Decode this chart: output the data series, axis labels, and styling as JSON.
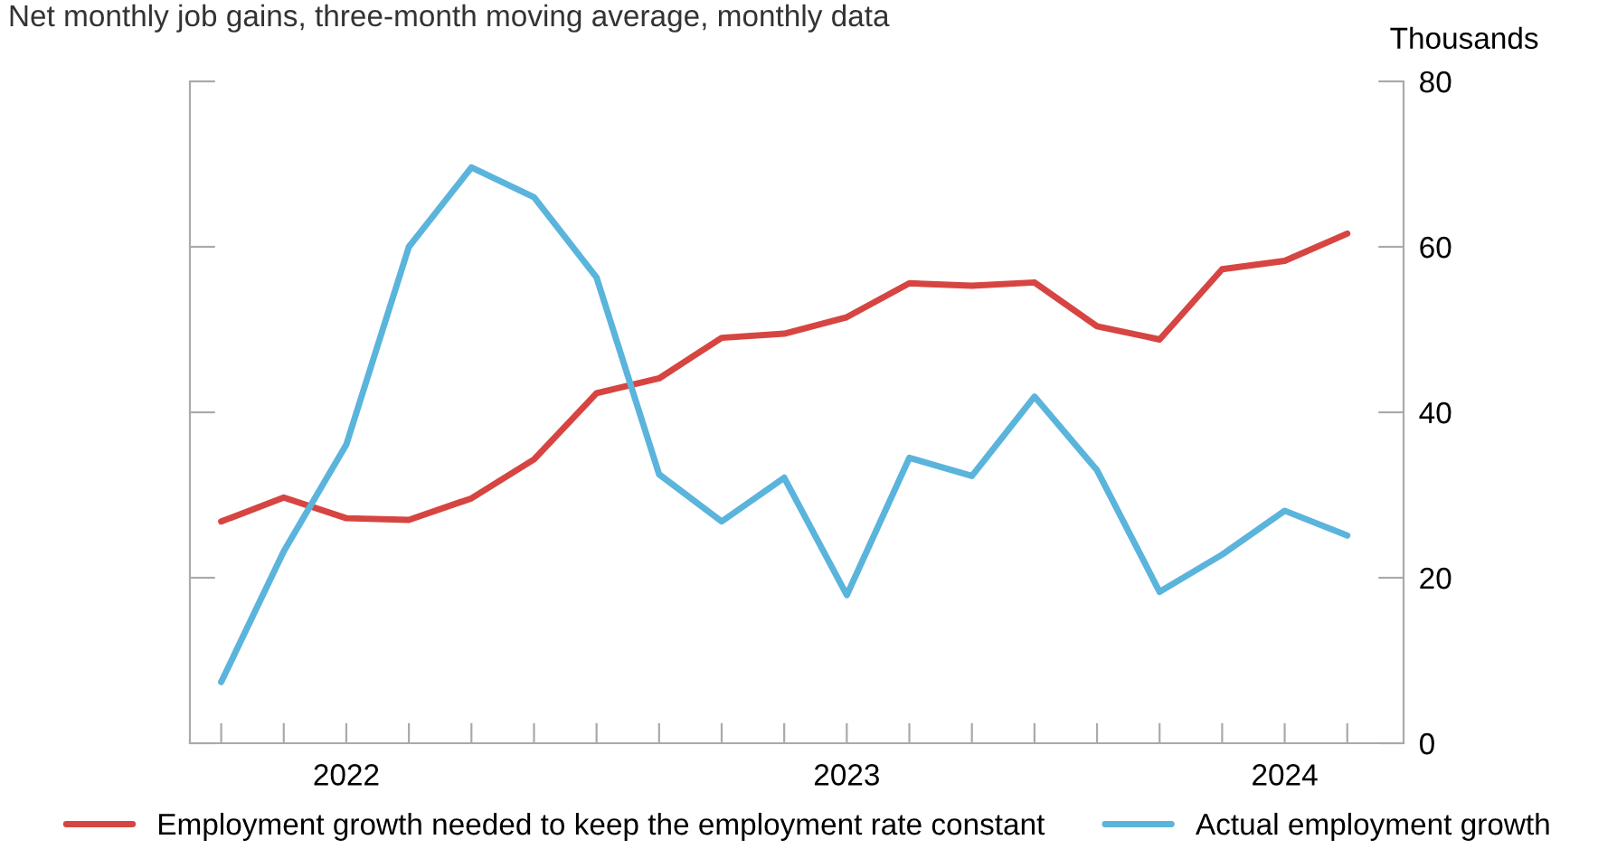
{
  "chart_data": {
    "type": "line",
    "subtitle": "Net monthly job gains, three-month moving average, monthly data",
    "ylabel": "Thousands",
    "categories": [
      null,
      null,
      "2022",
      null,
      null,
      null,
      null,
      null,
      null,
      null,
      "2023",
      null,
      null,
      null,
      null,
      null,
      null,
      "2024",
      null
    ],
    "series": [
      {
        "name": "Employment growth needed to keep the employment rate constant",
        "color": "#d64541",
        "values": [
          26.8,
          29.7,
          27.2,
          27.0,
          29.6,
          34.3,
          42.3,
          44.1,
          49.0,
          49.5,
          51.5,
          55.6,
          55.3,
          55.7,
          50.4,
          48.8,
          57.3,
          58.3,
          61.6
        ]
      },
      {
        "name": "Actual employment growth",
        "color": "#5ab4dc",
        "values": [
          7.4,
          23.2,
          36.1,
          60.0,
          69.6,
          66.0,
          56.3,
          32.5,
          26.8,
          32.1,
          17.9,
          34.5,
          32.3,
          41.9,
          33.0,
          18.3,
          22.8,
          28.1,
          25.1
        ]
      }
    ],
    "ylim": [
      0,
      80
    ],
    "yticks": [
      0,
      20,
      40,
      60,
      80
    ],
    "grid": false,
    "legend": "bottom",
    "marker": "none",
    "line_style": "solid"
  }
}
